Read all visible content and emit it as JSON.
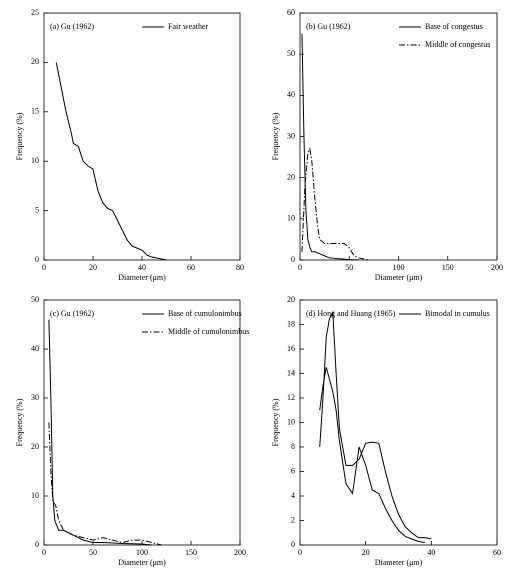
{
  "chart_data": [
    {
      "type": "line",
      "title": "(a) Gu (1962)",
      "xlabel": "Diameter (μm)",
      "ylabel": "Frequency (%)",
      "xlim": [
        0,
        80
      ],
      "ylim": [
        0,
        25
      ],
      "xticks": [
        0,
        20,
        40,
        60,
        80
      ],
      "yticks": [
        0,
        5,
        10,
        15,
        20,
        25
      ],
      "series": [
        {
          "name": "Fair weather",
          "color": "#000000",
          "dash": "solid",
          "x": [
            5,
            7,
            9,
            11,
            12,
            14,
            16,
            18,
            20,
            22,
            24,
            26,
            28,
            30,
            32,
            34,
            36,
            38,
            40,
            42,
            44,
            46,
            50
          ],
          "values": [
            20,
            17.5,
            15,
            13,
            11.8,
            11.5,
            10,
            9.5,
            9.2,
            7,
            5.8,
            5.2,
            5,
            4,
            3,
            2,
            1.4,
            1.2,
            1,
            0.5,
            0.3,
            0.2,
            0
          ]
        }
      ]
    },
    {
      "type": "line",
      "title": "(b) Gu (1962)",
      "xlabel": "Diameter (μm)",
      "ylabel": "Frequency (%)",
      "xlim": [
        0,
        200
      ],
      "ylim": [
        0,
        60
      ],
      "xticks": [
        0,
        50,
        100,
        150,
        200
      ],
      "yticks": [
        0,
        10,
        20,
        30,
        40,
        50,
        60
      ],
      "series": [
        {
          "name": "Base of congestus",
          "color": "#000000",
          "dash": "solid",
          "x": [
            2,
            4,
            6,
            8,
            10,
            12,
            15,
            20,
            25,
            30,
            40,
            50,
            60
          ],
          "values": [
            55,
            30,
            12,
            5,
            3,
            2,
            2,
            1.5,
            1,
            0.5,
            0.3,
            0.1,
            0
          ]
        },
        {
          "name": "Middle of congestus",
          "color": "#000000",
          "dash": "dashdot",
          "x": [
            2,
            5,
            8,
            10,
            12,
            15,
            18,
            20,
            25,
            30,
            35,
            40,
            45,
            50,
            55,
            60,
            70
          ],
          "values": [
            2,
            18,
            26,
            27,
            24,
            15,
            8,
            5,
            4,
            4,
            4,
            4,
            4,
            3,
            1,
            0.5,
            0
          ]
        }
      ]
    },
    {
      "type": "line",
      "title": "(c) Gu (1962)",
      "xlabel": "Diameter (μm)",
      "ylabel": "Frequency (%)",
      "xlim": [
        0,
        200
      ],
      "ylim": [
        0,
        50
      ],
      "xticks": [
        0,
        50,
        100,
        150,
        200
      ],
      "yticks": [
        0,
        10,
        20,
        30,
        40,
        50
      ],
      "series": [
        {
          "name": "Base of cumulonimbus",
          "color": "#000000",
          "dash": "solid",
          "x": [
            5,
            7,
            9,
            11,
            13,
            15,
            20,
            25,
            30,
            40,
            50,
            60,
            80,
            100,
            110
          ],
          "values": [
            46,
            30,
            10,
            5,
            4,
            3,
            3,
            2.5,
            2,
            1,
            0.5,
            0.5,
            0.3,
            0.2,
            0
          ]
        },
        {
          "name": "Middle of cumulonimbus",
          "color": "#000000",
          "dash": "dashdot",
          "x": [
            5,
            7,
            9,
            12,
            15,
            20,
            30,
            40,
            50,
            60,
            70,
            80,
            90,
            100,
            110,
            120
          ],
          "values": [
            25,
            15,
            9,
            8,
            5,
            3,
            2,
            1.5,
            1,
            1.5,
            1,
            0.5,
            1,
            1,
            0.5,
            0
          ]
        }
      ]
    },
    {
      "type": "line",
      "title": "(d) Hong and Huang (1965)",
      "xlabel": "Diameter (μm)",
      "ylabel": "Frequency (%)",
      "xlim": [
        0,
        60
      ],
      "ylim": [
        0,
        20
      ],
      "xticks": [
        0,
        20,
        40,
        60
      ],
      "yticks": [
        0,
        2,
        4,
        6,
        8,
        10,
        12,
        14,
        16,
        18,
        20
      ],
      "series": [
        {
          "name": "Bimodal in cumulus",
          "color": "#000000",
          "dash": "solid",
          "x": [
            6,
            7,
            8,
            9,
            10,
            11,
            12,
            14,
            16,
            18,
            20,
            22,
            24,
            26,
            28,
            30,
            32,
            34,
            36,
            38,
            40
          ],
          "values": [
            8,
            12,
            17,
            18.5,
            19,
            14,
            9.5,
            6.5,
            6.5,
            7,
            8.3,
            8.4,
            8.3,
            6,
            4,
            2.5,
            1.5,
            1,
            0.6,
            0.6,
            0.5
          ]
        },
        {
          "color": "#000000",
          "dash": "solid",
          "x": [
            6,
            7,
            8,
            9,
            10,
            11,
            12,
            14,
            16,
            18,
            20,
            22,
            24,
            26,
            28,
            30,
            32,
            34,
            36,
            38
          ],
          "values": [
            11,
            13,
            14.5,
            13.5,
            12.5,
            11,
            8.5,
            5,
            4.2,
            8,
            6.5,
            4.5,
            4.2,
            3,
            2,
            1.2,
            0.7,
            0.5,
            0.3,
            0.2
          ]
        }
      ]
    }
  ]
}
